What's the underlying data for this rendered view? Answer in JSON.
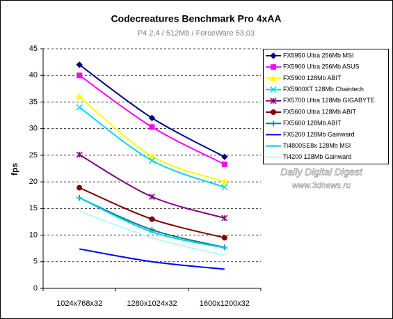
{
  "chart_data": {
    "type": "line",
    "title": "Codecreatures Benchmark Pro 4xAA",
    "subtitle": "P4 2,4 / 512Mb / ForceWare 53,03",
    "y_label": "fps",
    "annotations": [
      "Daily Digital Digest",
      "www.3dnews.ru"
    ],
    "categories": [
      "1024x768x32",
      "1280x1024x32",
      "1600x1200x32"
    ],
    "ylim": [
      0,
      45
    ],
    "yticks": [
      0,
      5,
      10,
      15,
      20,
      25,
      30,
      35,
      40,
      45
    ],
    "grid": true,
    "smooth": true,
    "legend": "right",
    "series": [
      {
        "name": "FX5950 Ultra 256Mb MSI",
        "color": "#000080",
        "marker": "diamond",
        "values": [
          42,
          32,
          24.7
        ]
      },
      {
        "name": "FX5900 Ultra 256Mb ASUS",
        "color": "#ff00ff",
        "marker": "square",
        "values": [
          40,
          30.3,
          23.3
        ]
      },
      {
        "name": "FX5900 128Mb ABIT",
        "color": "#ffff00",
        "marker": "triangle",
        "values": [
          36,
          24.8,
          20
        ]
      },
      {
        "name": "FX5900XT 128Mb Chaintech",
        "color": "#00d8f0",
        "marker": "x",
        "values": [
          34,
          24,
          19
        ]
      },
      {
        "name": "FX5700 Ultra 128Mb GIGABYTE",
        "color": "#800080",
        "marker": "star",
        "values": [
          25.1,
          17.2,
          13.2
        ]
      },
      {
        "name": "FX5600 Ultra 128Mb ABIT",
        "color": "#800000",
        "marker": "circle",
        "values": [
          18.9,
          13,
          9.5
        ]
      },
      {
        "name": "FX5600 128Mb ABIT",
        "color": "#008080",
        "marker": "plus",
        "values": [
          17,
          11,
          7.7
        ]
      },
      {
        "name": "FX5200 128Mb Gainward",
        "color": "#0000ff",
        "marker": "none",
        "values": [
          7.4,
          5,
          3.6
        ]
      },
      {
        "name": "Ti4800SE8x 128Mb MSI",
        "color": "#00ccff",
        "marker": "dash",
        "values": [
          17,
          10.6,
          7.6
        ]
      },
      {
        "name": "Ti4200 128Mb Gainward",
        "color": "#b8f8f8",
        "marker": "none",
        "values": [
          14.5,
          9.5,
          6.2
        ]
      }
    ]
  }
}
